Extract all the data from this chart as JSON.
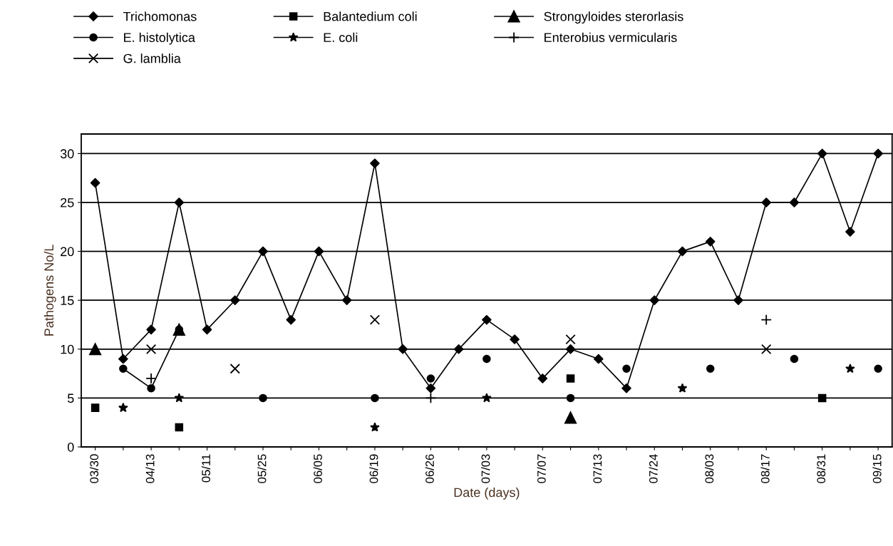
{
  "chart_data": {
    "type": "line",
    "categories": [
      "03/30",
      null,
      "04/13",
      null,
      "05/11",
      null,
      "05/25",
      null,
      "06/05",
      null,
      "06/19",
      null,
      "06/26",
      null,
      "07/03",
      null,
      "07/07",
      null,
      "07/13",
      null,
      "07/24",
      null,
      "08/03",
      null,
      "08/17",
      null,
      "08/31",
      null,
      "09/15"
    ],
    "xlabel": "Date (days)",
    "ylabel": "Pathogens No/L",
    "ylim": [
      0,
      32
    ],
    "yticks": [
      0,
      5,
      10,
      15,
      20,
      25,
      30
    ],
    "grid": "y",
    "legend": "top",
    "series": [
      {
        "name": "Trichomonas",
        "color": "#000000",
        "marker": "diamond",
        "values": [
          27,
          9,
          12,
          25,
          12,
          15,
          20,
          13,
          20,
          15,
          29,
          10,
          6,
          10,
          13,
          11,
          7,
          10,
          9,
          6,
          15,
          20,
          21,
          15,
          25,
          25,
          30,
          22,
          30
        ]
      },
      {
        "name": "Balantedium coli",
        "type": "scatter",
        "color": "#000000",
        "marker": "square",
        "values": [
          4,
          null,
          null,
          2,
          null,
          null,
          null,
          null,
          null,
          null,
          null,
          null,
          null,
          null,
          null,
          null,
          null,
          7,
          null,
          null,
          null,
          null,
          null,
          null,
          null,
          null,
          5,
          null,
          null
        ]
      },
      {
        "name": "Strongyloides sterorlasis",
        "type": "scatter",
        "color": "#000000",
        "marker": "triangle",
        "values": [
          10,
          null,
          null,
          12,
          null,
          null,
          null,
          null,
          null,
          null,
          null,
          null,
          null,
          null,
          null,
          null,
          null,
          3,
          null,
          null,
          null,
          null,
          null,
          null,
          null,
          null,
          null,
          null,
          null
        ]
      },
      {
        "type": "line",
        "color": "#000000",
        "marker": "none",
        "values": [
          null,
          8,
          6,
          12,
          null,
          null,
          null,
          null,
          null,
          null,
          null,
          null,
          null,
          null,
          null,
          null,
          null,
          null,
          null,
          null,
          null,
          null,
          null,
          null,
          null,
          null,
          null,
          null,
          null
        ]
      },
      {
        "name": "E. histolytica",
        "type": "scatter",
        "color": "#000000",
        "marker": "circle",
        "values": [
          null,
          8,
          6,
          12,
          null,
          null,
          5,
          null,
          null,
          null,
          5,
          null,
          7,
          null,
          9,
          null,
          null,
          5,
          null,
          8,
          null,
          null,
          8,
          null,
          null,
          9,
          null,
          null,
          8
        ]
      },
      {
        "name": "E. coli",
        "type": "scatter",
        "color": "#000000",
        "marker": "star",
        "values": [
          null,
          4,
          null,
          5,
          null,
          null,
          null,
          null,
          null,
          null,
          2,
          null,
          null,
          null,
          5,
          null,
          null,
          null,
          null,
          null,
          null,
          6,
          null,
          null,
          null,
          null,
          null,
          8,
          null
        ]
      },
      {
        "name": "Enterobius vermicularis",
        "type": "scatter",
        "color": "#000000",
        "marker": "plus",
        "values": [
          null,
          null,
          7,
          null,
          null,
          null,
          null,
          null,
          null,
          null,
          null,
          null,
          5,
          null,
          null,
          null,
          null,
          null,
          null,
          null,
          null,
          null,
          null,
          null,
          13,
          null,
          null,
          null,
          null
        ]
      },
      {
        "name": "G. lamblia",
        "type": "scatter",
        "color": "#000000",
        "marker": "cross",
        "values": [
          null,
          null,
          10,
          null,
          null,
          8,
          null,
          null,
          null,
          null,
          13,
          null,
          null,
          null,
          null,
          null,
          null,
          11,
          null,
          null,
          null,
          null,
          null,
          null,
          10,
          null,
          null,
          null,
          null
        ]
      }
    ]
  }
}
